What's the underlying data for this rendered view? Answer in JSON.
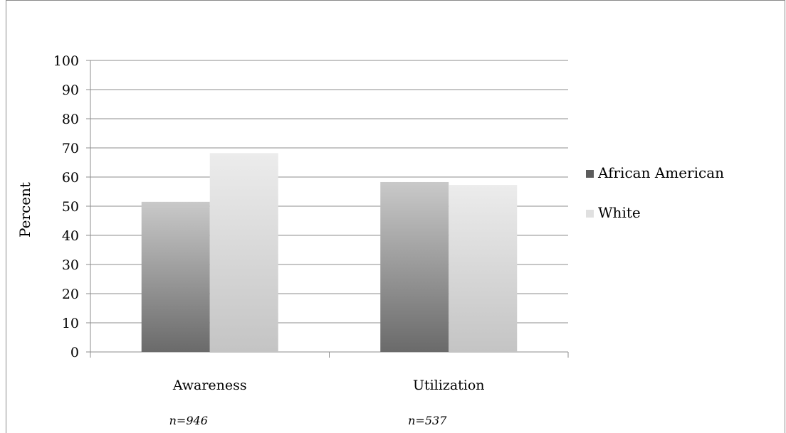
{
  "chart_data": {
    "type": "bar",
    "categories": [
      "Awareness",
      "Utilization"
    ],
    "series": [
      {
        "name": "African American",
        "values": [
          51.5,
          58.3
        ],
        "color": "#6b6b6b"
      },
      {
        "name": "White",
        "values": [
          68.2,
          57.3
        ],
        "color": "#d9d9d9"
      }
    ],
    "ylabel": "Percent",
    "ylim": [
      0,
      100
    ],
    "yticks": [
      0,
      10,
      20,
      30,
      40,
      50,
      60,
      70,
      80,
      90,
      100
    ],
    "grid": true,
    "legend_position": "right",
    "annotations": [
      "n=946",
      "n=537"
    ]
  }
}
